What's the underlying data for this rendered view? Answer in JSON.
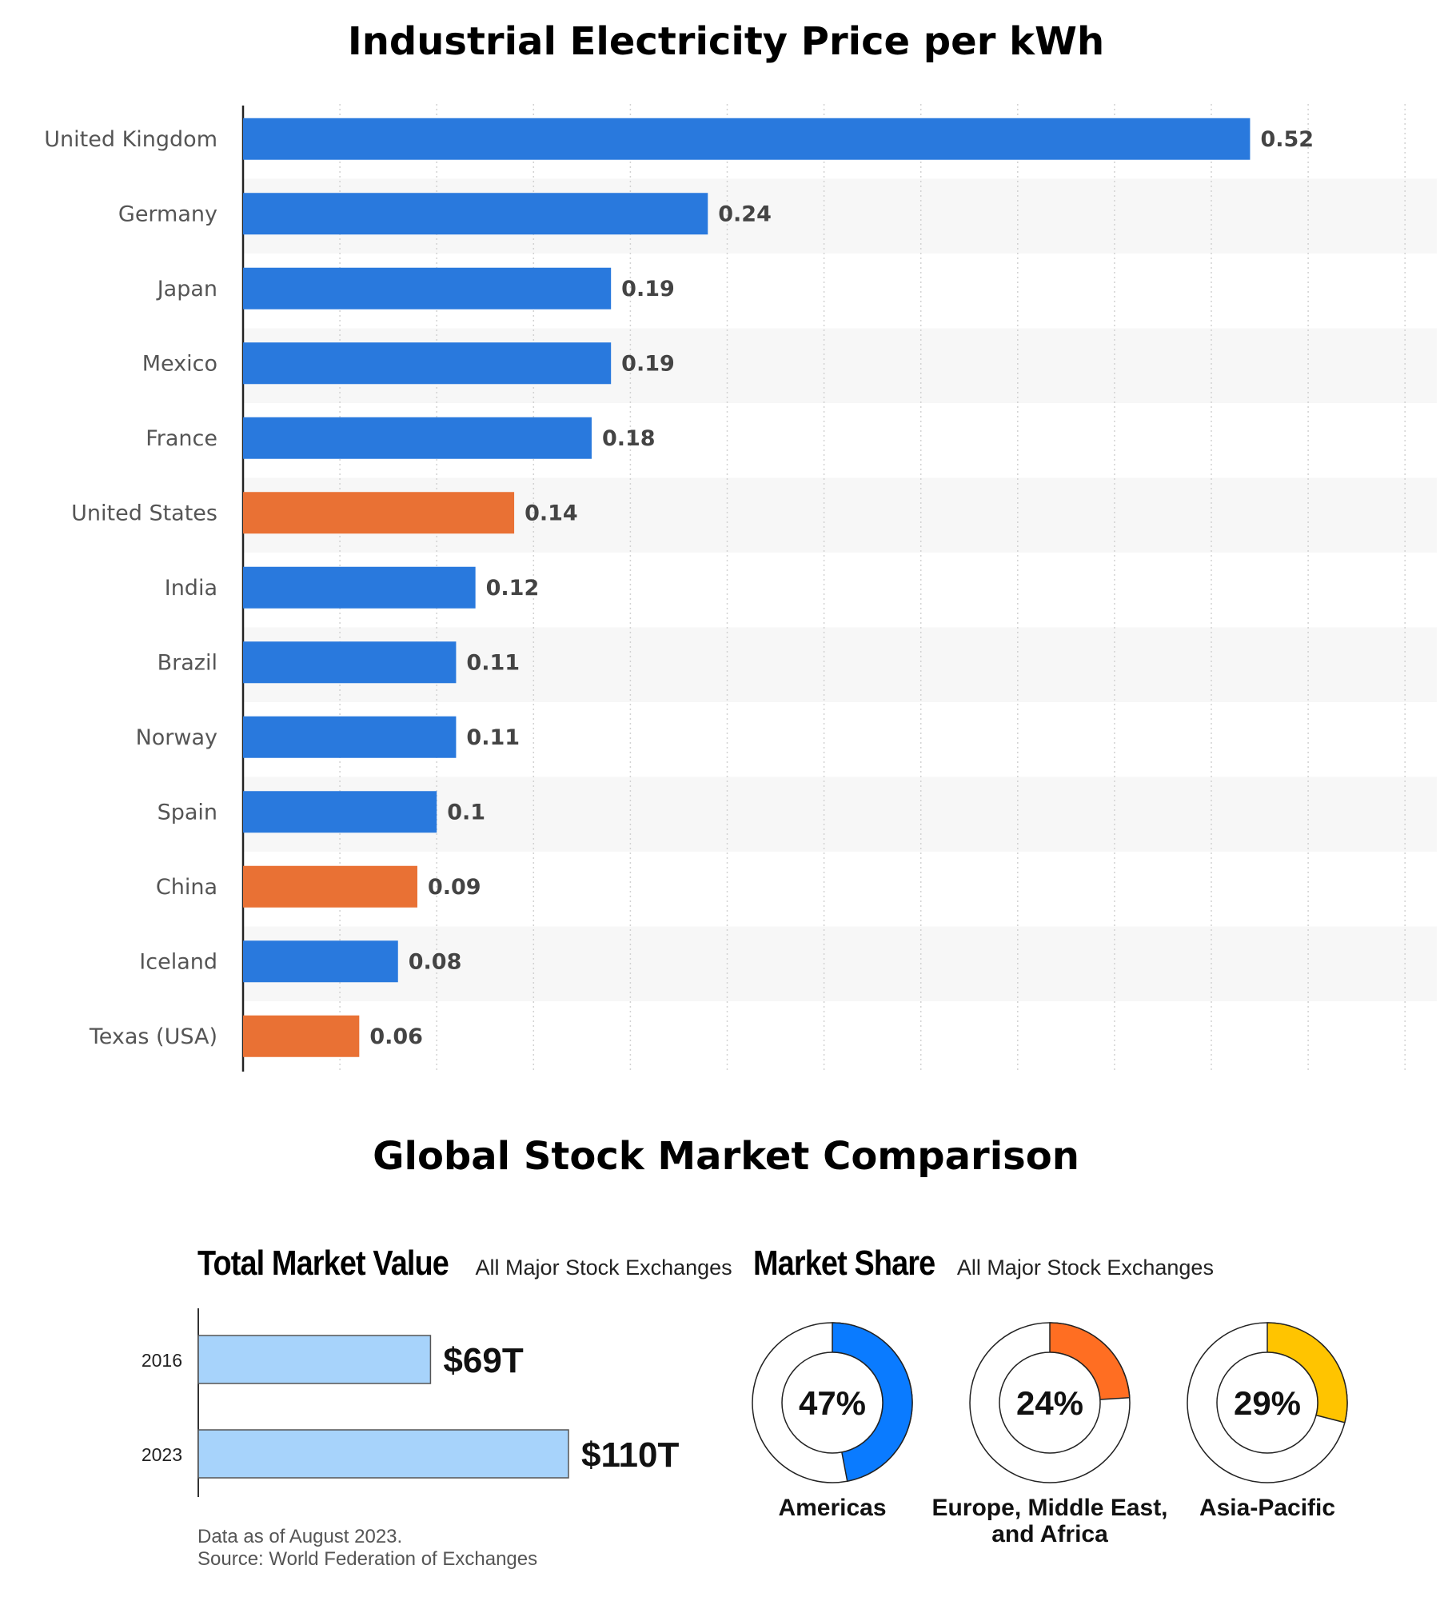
{
  "electricity": {
    "title": "Industrial Electricity Price per kWh",
    "chart_data": {
      "type": "bar",
      "orientation": "horizontal",
      "categories": [
        "United Kingdom",
        "Germany",
        "Japan",
        "Mexico",
        "France",
        "United States",
        "India",
        "Brazil",
        "Norway",
        "Spain",
        "China",
        "Iceland",
        "Texas (USA)"
      ],
      "values": [
        0.52,
        0.24,
        0.19,
        0.19,
        0.18,
        0.14,
        0.12,
        0.11,
        0.11,
        0.1,
        0.09,
        0.08,
        0.06
      ],
      "value_labels": [
        "0.52",
        "0.24",
        "0.19",
        "0.19",
        "0.18",
        "0.14",
        "0.12",
        "0.11",
        "0.11",
        "0.1",
        "0.09",
        "0.08",
        "0.06"
      ],
      "highlighted": [
        "United States",
        "China",
        "Texas (USA)"
      ],
      "colors": {
        "default": "#2979DD",
        "highlight": "#E97134"
      },
      "xlim": [
        0,
        0.6
      ],
      "grid": true
    }
  },
  "stocks": {
    "title": "Global Stock Market Comparison",
    "market_value": {
      "heading": "Total Market Value",
      "subheading": "All Major Stock Exchanges",
      "chart_data": {
        "type": "bar",
        "orientation": "horizontal",
        "categories": [
          "2016",
          "2023"
        ],
        "values": [
          69,
          110
        ],
        "value_labels": [
          "$69T",
          "$110T"
        ],
        "unit": "trillion USD",
        "color": "#A7D3FB"
      }
    },
    "market_share": {
      "heading": "Market Share",
      "subheading": "All Major Stock Exchanges",
      "chart_data": {
        "type": "pie",
        "style": "donut",
        "items": [
          {
            "label": "Americas",
            "label_lines": [
              "Americas"
            ],
            "value": 47,
            "display": "47%",
            "color": "#0A7BFF"
          },
          {
            "label": "Europe, Middle East, and Africa",
            "label_lines": [
              "Europe, Middle East,",
              "and Africa"
            ],
            "value": 24,
            "display": "24%",
            "color": "#FF6E22"
          },
          {
            "label": "Asia-Pacific",
            "label_lines": [
              "Asia-Pacific"
            ],
            "value": 29,
            "display": "29%",
            "color": "#FFC400"
          }
        ]
      }
    },
    "footnote": {
      "line1": "Data as of August 2023.",
      "line2": "Source: World Federation of Exchanges"
    }
  }
}
